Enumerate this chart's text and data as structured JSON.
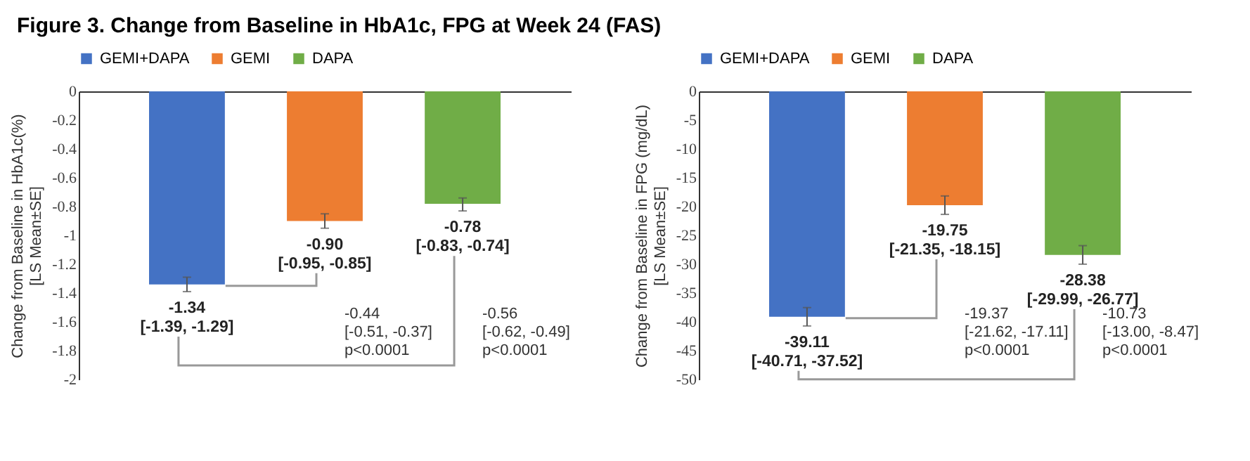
{
  "chart_data": [
    {
      "type": "bar",
      "title": "Figure 3. Change from Baseline in HbA1c, FPG at Week 24 (FAS)",
      "ylabel": "Change from Baseline in HbA1c(%)\n[LS Mean±SE]",
      "categories": [
        null
      ],
      "series": [
        {
          "name": "GEMI+DAPA",
          "color": "#4472c4",
          "values": [
            -1.34
          ],
          "errors": [
            [
              -1.39,
              -1.29
            ]
          ],
          "value_labels": [
            "-1.34\n[-1.39, -1.29]"
          ]
        },
        {
          "name": "GEMI",
          "color": "#ed7d31",
          "values": [
            -0.9
          ],
          "errors": [
            [
              -0.95,
              -0.85
            ]
          ],
          "value_labels": [
            "-0.90\n[-0.95, -0.85]"
          ]
        },
        {
          "name": "DAPA",
          "color": "#70ad47",
          "values": [
            -0.78
          ],
          "errors": [
            [
              -0.83,
              -0.74
            ]
          ],
          "value_labels": [
            "-0.78\n[-0.83, -0.74]"
          ]
        }
      ],
      "annotations": [
        "-0.44\n[-0.51, -0.37]\np<0.0001",
        "-0.56\n[-0.62, -0.49]\np<0.0001"
      ],
      "ylim": [
        -2,
        0
      ],
      "yticks": [
        -2,
        -1.8,
        -1.6,
        -1.4,
        -1.2,
        -1,
        -0.8,
        -0.6,
        -0.4,
        -0.2,
        0
      ],
      "grid": false,
      "legend": "top",
      "tick_labels": "y"
    },
    {
      "type": "bar",
      "ylabel": "Change from Baseline in FPG (mg/dL)\n[LS Mean±SE]",
      "categories": [
        null
      ],
      "series": [
        {
          "name": "GEMI+DAPA",
          "color": "#4472c4",
          "values": [
            -39.11
          ],
          "errors": [
            [
              -40.71,
              -37.52
            ]
          ],
          "value_labels": [
            "-39.11\n[-40.71, -37.52]"
          ]
        },
        {
          "name": "GEMI",
          "color": "#ed7d31",
          "values": [
            -19.75
          ],
          "errors": [
            [
              -21.35,
              -18.15
            ]
          ],
          "value_labels": [
            "-19.75\n[-21.35, -18.15]"
          ]
        },
        {
          "name": "DAPA",
          "color": "#70ad47",
          "values": [
            -28.38
          ],
          "errors": [
            [
              -29.99,
              -26.77
            ]
          ],
          "value_labels": [
            "-28.38\n[-29.99, -26.77]"
          ]
        }
      ],
      "annotations": [
        "-19.37\n[-21.62, -17.11]\np<0.0001",
        "-10.73\n[-13.00, -8.47]\np<0.0001"
      ],
      "ylim": [
        -50,
        0
      ],
      "yticks": [
        -50,
        -45,
        -40,
        -35,
        -30,
        -25,
        -20,
        -15,
        -10,
        -5,
        0
      ],
      "grid": false,
      "legend": "top",
      "tick_labels": "y"
    }
  ]
}
